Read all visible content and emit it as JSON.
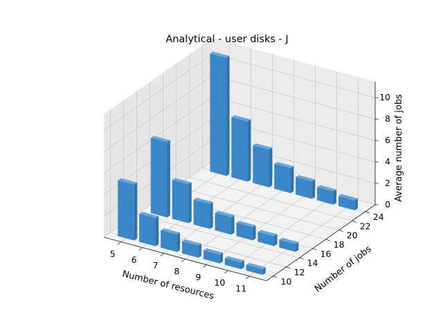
{
  "chart_data": {
    "type": "bar3d",
    "title": "Analytical - user disks - J",
    "xlabel": "Number of resources",
    "ylabel": "Number of jobs",
    "zlabel": "Average number of jobs",
    "x_ticks": [
      5,
      6,
      7,
      8,
      9,
      10,
      11
    ],
    "y_ticks": [
      10,
      12,
      14,
      16,
      18,
      20,
      22,
      24
    ],
    "z_ticks": [
      0,
      2,
      4,
      6,
      8,
      10
    ],
    "xlim": [
      4.2,
      11.8
    ],
    "ylim": [
      9,
      25.5
    ],
    "zlim": [
      0,
      11.5
    ],
    "grid": true,
    "bar_color": "#3a86c8",
    "series": [
      {
        "y": 10,
        "x": [
          5,
          6,
          7,
          8,
          9,
          10,
          11
        ],
        "values": [
          5.2,
          2.6,
          1.6,
          1.1,
          0.8,
          0.6,
          0.5
        ]
      },
      {
        "y": 15,
        "x": [
          5,
          6,
          7,
          8,
          9,
          10,
          11
        ],
        "values": [
          7.0,
          3.6,
          2.3,
          1.6,
          1.2,
          0.9,
          0.7
        ]
      },
      {
        "y": 24,
        "x": [
          5,
          6,
          7,
          8,
          9,
          10,
          11
        ],
        "values": [
          11.0,
          5.6,
          3.5,
          2.3,
          1.6,
          1.2,
          0.9
        ]
      }
    ]
  }
}
